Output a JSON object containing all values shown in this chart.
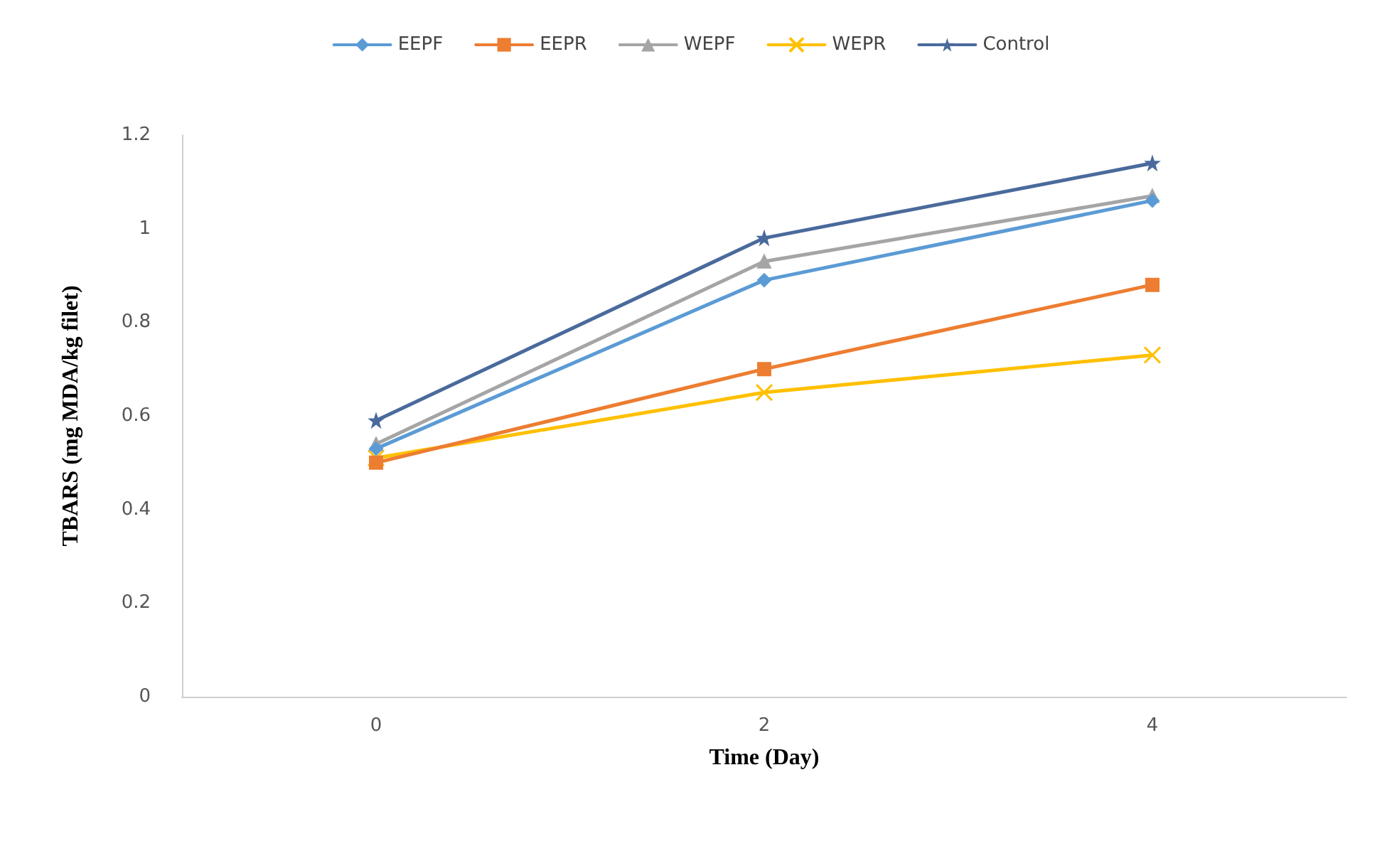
{
  "chart_data": {
    "type": "line",
    "xlabel": "Time (Day)",
    "ylabel": "TBARS (mg MDA/kg filet)",
    "categories": [
      "0",
      "2",
      "4"
    ],
    "series": [
      {
        "name": "EEPF",
        "color": "#5b9bd5",
        "marker": "diamond",
        "values": [
          0.53,
          0.89,
          1.06
        ]
      },
      {
        "name": "EEPR",
        "color": "#ed7d31",
        "marker": "square",
        "values": [
          0.5,
          0.7,
          0.88
        ]
      },
      {
        "name": "WEPF",
        "color": "#a5a5a5",
        "marker": "triangle",
        "values": [
          0.54,
          0.93,
          1.07
        ]
      },
      {
        "name": "WEPR",
        "color": "#ffc000",
        "marker": "cross",
        "values": [
          0.51,
          0.65,
          0.73
        ]
      },
      {
        "name": "Control",
        "color": "#4a6a9c",
        "marker": "star",
        "values": [
          0.59,
          0.98,
          1.14
        ]
      }
    ],
    "ylim": [
      0,
      1.2
    ],
    "yticks": [
      0,
      0.2,
      0.4,
      0.6,
      0.8,
      1,
      1.2
    ],
    "grid": false,
    "legend": "top",
    "line_style": "solid"
  }
}
